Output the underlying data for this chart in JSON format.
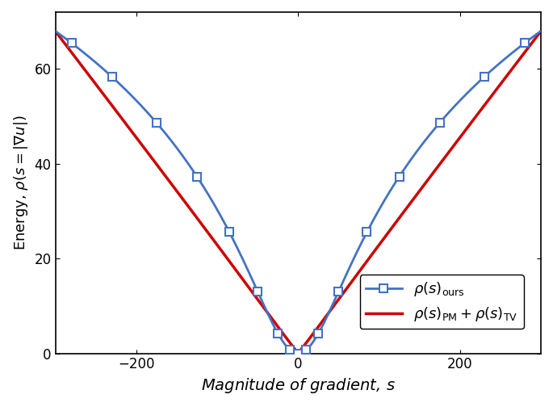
{
  "xlim": [
    -300,
    300
  ],
  "ylim": [
    0,
    72
  ],
  "xticks": [
    -200,
    0,
    200
  ],
  "yticks": [
    0,
    20,
    40,
    60
  ],
  "xlabel": "Magnitude of gradient, $s$",
  "ylabel": "Energy, $\\rho(s = |\\nabla u|)$",
  "blue_color": "#4472C4",
  "red_color": "#CC0000",
  "background_color": "#FFFFFF",
  "k_param": 50.0,
  "alpha_tv": 0.22,
  "alpha_pm": 68.0,
  "marker_positions": [
    -280,
    -230,
    -175,
    -125,
    -85,
    -50,
    -25,
    -10,
    0,
    10,
    25,
    50,
    85,
    125,
    175,
    230,
    280
  ],
  "legend_loc": "lower center",
  "title": ""
}
